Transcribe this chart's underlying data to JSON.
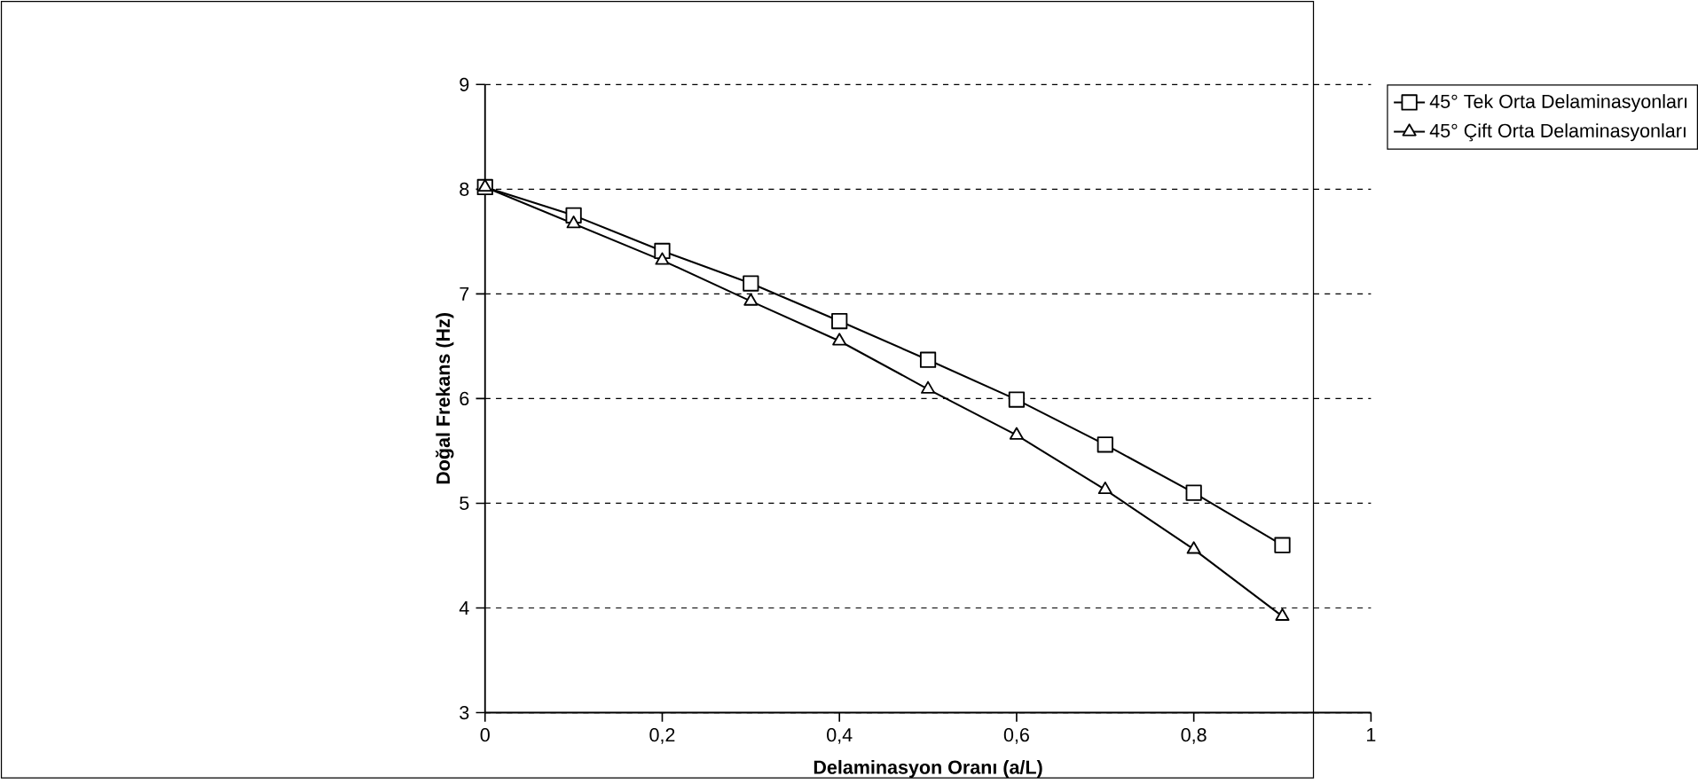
{
  "chart_data": {
    "type": "line",
    "xlabel": "Delaminasyon Oranı (a/L)",
    "ylabel": "Doğal Frekans (Hz)",
    "x": [
      0,
      0.1,
      0.2,
      0.3,
      0.4,
      0.5,
      0.6,
      0.7,
      0.8,
      0.9
    ],
    "series": [
      {
        "name": "45° Tek Orta Delaminasyonları",
        "color": "#000000",
        "marker": "square",
        "values": [
          8.02,
          7.75,
          7.41,
          7.1,
          6.74,
          6.37,
          5.99,
          5.56,
          5.1,
          4.6
        ]
      },
      {
        "name": "45° Çift Orta Delaminasyonları",
        "color": "#000000",
        "marker": "triangle",
        "values": [
          8.02,
          7.67,
          7.32,
          6.93,
          6.55,
          6.09,
          5.65,
          5.13,
          4.56,
          3.92
        ]
      }
    ],
    "xlim": [
      0,
      1
    ],
    "xticks": [
      0,
      {
        "value": 0.2,
        "label": "0,2"
      },
      {
        "value": 0.4,
        "label": "0,4"
      },
      {
        "value": 0.6,
        "label": "0,6"
      },
      {
        "value": 0.8,
        "label": "0,8"
      },
      1
    ],
    "ylim": [
      3,
      9
    ],
    "yticks": [
      3,
      4,
      5,
      6,
      7,
      8,
      9
    ],
    "grid": "y",
    "legend": "right",
    "line_style": "solid"
  }
}
